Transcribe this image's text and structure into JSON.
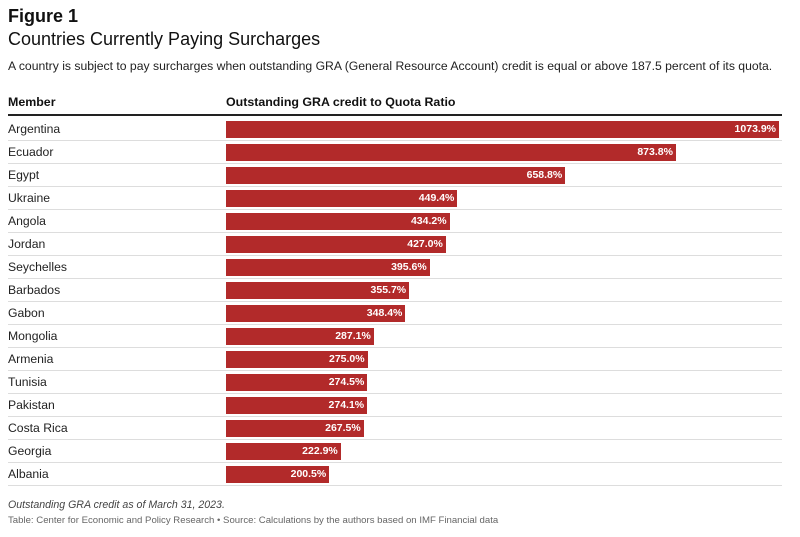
{
  "figure_label": "Figure 1",
  "title": "Countries Currently Paying Surcharges",
  "subtitle": "A country is subject to pay surcharges when outstanding GRA (General Resource Account) credit is equal or above 187.5 percent of its quota.",
  "columns": {
    "member": "Member",
    "ratio": "Outstanding GRA credit to Quota Ratio"
  },
  "colors": {
    "bar": "#b22a2a",
    "label_text": "#ffffff",
    "row_divider": "#dddddd"
  },
  "chart_data": {
    "type": "bar",
    "orientation": "horizontal",
    "xlim": [
      0,
      1073.9
    ],
    "categories": [
      "Argentina",
      "Ecuador",
      "Egypt",
      "Ukraine",
      "Angola",
      "Jordan",
      "Seychelles",
      "Barbados",
      "Gabon",
      "Mongolia",
      "Armenia",
      "Tunisia",
      "Pakistan",
      "Costa Rica",
      "Georgia",
      "Albania"
    ],
    "values": [
      1073.9,
      873.8,
      658.8,
      449.4,
      434.2,
      427.0,
      395.6,
      355.7,
      348.4,
      287.1,
      275.0,
      274.5,
      274.1,
      267.5,
      222.9,
      200.5
    ],
    "value_labels": [
      "1073.9%",
      "873.8%",
      "658.8%",
      "449.4%",
      "434.2%",
      "427.0%",
      "395.6%",
      "355.7%",
      "348.4%",
      "287.1%",
      "275.0%",
      "274.5%",
      "274.1%",
      "267.5%",
      "222.9%",
      "200.5%"
    ]
  },
  "note": "Outstanding GRA credit as of March 31, 2023.",
  "source": "Table: Center for Economic and Policy Research • Source: Calculations by the authors based on IMF Financial data"
}
